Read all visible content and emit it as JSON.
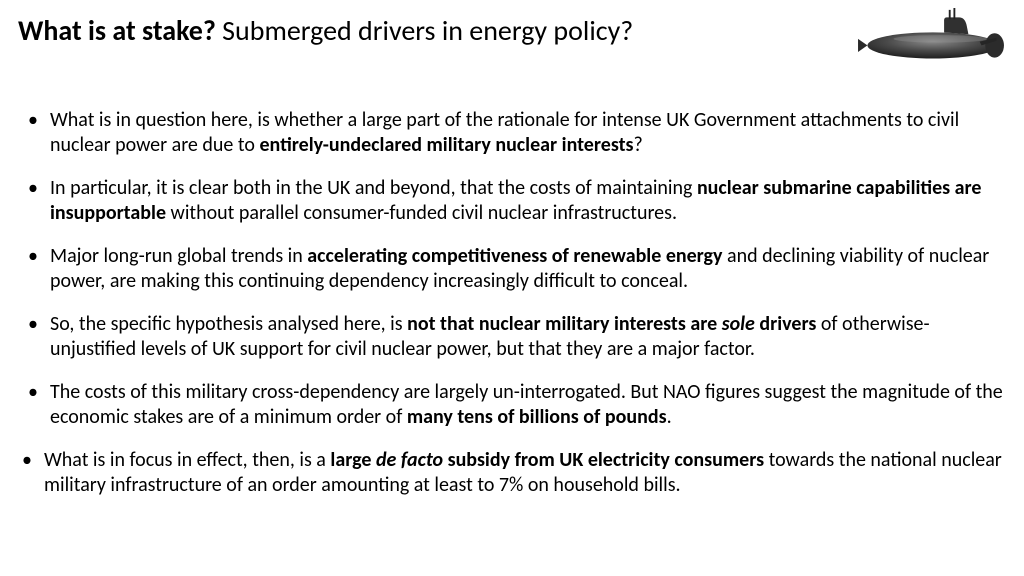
{
  "title": {
    "bold": "What is at stake?",
    "rest": " Submerged drivers in energy policy?"
  },
  "bullets": [
    {
      "segments": [
        {
          "t": "What is in question here, is whether a large part of the rationale for intense UK Government attachments to civil nuclear power are due to "
        },
        {
          "t": "entirely-undeclared military nuclear interests",
          "b": true
        },
        {
          "t": "?"
        }
      ]
    },
    {
      "segments": [
        {
          "t": "In particular,  it is clear both in the UK and beyond, that the costs of maintaining "
        },
        {
          "t": "nuclear submarine capabilities are insupportable",
          "b": true
        },
        {
          "t": " without parallel consumer-funded civil nuclear infrastructures."
        }
      ]
    },
    {
      "segments": [
        {
          "t": "Major long-run global trends in "
        },
        {
          "t": "accelerating competitiveness of renewable energy",
          "b": true
        },
        {
          "t": " and declining viability of nuclear power, are making this continuing dependency increasingly difficult to conceal."
        }
      ]
    },
    {
      "segments": [
        {
          "t": "So, the specific hypothesis analysed here, is "
        },
        {
          "t": "not that nuclear military interests are ",
          "b": true
        },
        {
          "t": "sole",
          "b": true,
          "i": true
        },
        {
          "t": " drivers",
          "b": true
        },
        {
          "t": " of otherwise-unjustified levels of UK support for civil nuclear power, but that they are a major factor."
        }
      ]
    },
    {
      "segments": [
        {
          "t": "The costs of this military cross-dependency are largely un-interrogated. But NAO figures suggest the magnitude of the economic stakes are of a minimum order of "
        },
        {
          "t": "many tens of billions of pounds",
          "b": true
        },
        {
          "t": "."
        }
      ]
    },
    {
      "shiftLeft": true,
      "segments": [
        {
          "t": "What is in focus in effect, then, is a "
        },
        {
          "t": "large ",
          "b": true
        },
        {
          "t": "de facto",
          "b": true,
          "i": true
        },
        {
          "t": " subsidy from UK electricity consumers",
          "b": true
        },
        {
          "t": " towards the national nuclear military infrastructure of an order amounting at least to 7% on household bills."
        }
      ]
    }
  ],
  "colors": {
    "background": "#ffffff",
    "text": "#000000",
    "sub_body": "#3b3b3b",
    "sub_dark": "#1a1a1a",
    "sub_light": "#6a6a6a"
  }
}
